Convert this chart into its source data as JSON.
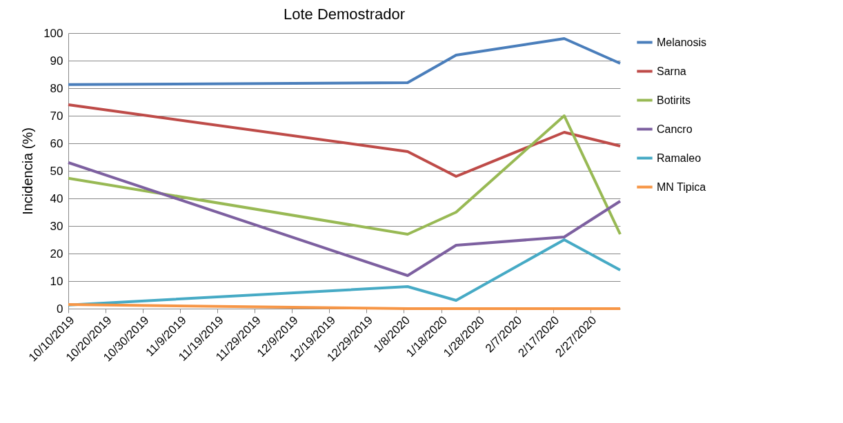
{
  "chart_data": {
    "type": "line",
    "title": "Lote Demostrador",
    "ylabel": "Incidencia (%)",
    "x": [
      "2019-10-10",
      "2020-01-09",
      "2020-01-22",
      "2020-02-20",
      "2020-03-06"
    ],
    "series": [
      {
        "name": "Melanosis",
        "color": "#4a7ebb",
        "values": [
          81.3,
          82,
          92,
          98,
          89
        ]
      },
      {
        "name": "Sarna",
        "color": "#be4b48",
        "values": [
          74,
          57,
          48,
          64,
          59
        ]
      },
      {
        "name": "Botirits",
        "color": "#98b954",
        "values": [
          47.3,
          27,
          35,
          70,
          27
        ]
      },
      {
        "name": "Cancro",
        "color": "#7d60a0",
        "values": [
          53,
          12,
          23,
          26,
          39
        ]
      },
      {
        "name": "Ramaleo",
        "color": "#46aac5",
        "values": [
          1.3,
          8,
          3,
          25,
          14
        ]
      },
      {
        "name": "MN Tipica",
        "color": "#f79646",
        "values": [
          1.5,
          0,
          0,
          0,
          0
        ]
      }
    ],
    "xlim": [
      "2019-10-10",
      "2020-03-06"
    ],
    "xticks": [
      {
        "value": "2019-10-10",
        "label": "10/10/2019"
      },
      {
        "value": "2019-10-20",
        "label": "10/20/2019"
      },
      {
        "value": "2019-10-30",
        "label": "10/30/2019"
      },
      {
        "value": "2019-11-09",
        "label": "11/9/2019"
      },
      {
        "value": "2019-11-19",
        "label": "11/19/2019"
      },
      {
        "value": "2019-11-29",
        "label": "11/29/2019"
      },
      {
        "value": "2019-12-09",
        "label": "12/9/2019"
      },
      {
        "value": "2019-12-19",
        "label": "12/19/2019"
      },
      {
        "value": "2019-12-29",
        "label": "12/29/2019"
      },
      {
        "value": "2020-01-08",
        "label": "1/8/2020"
      },
      {
        "value": "2020-01-18",
        "label": "1/18/2020"
      },
      {
        "value": "2020-01-28",
        "label": "1/28/2020"
      },
      {
        "value": "2020-02-07",
        "label": "2/7/2020"
      },
      {
        "value": "2020-02-17",
        "label": "2/17/2020"
      },
      {
        "value": "2020-02-27",
        "label": "2/27/2020"
      }
    ],
    "ylim": [
      0,
      100
    ],
    "yticks": [
      0,
      10,
      20,
      30,
      40,
      50,
      60,
      70,
      80,
      90,
      100
    ],
    "grid": "y",
    "legend": "right",
    "marker": "none",
    "line_style": "solid"
  }
}
